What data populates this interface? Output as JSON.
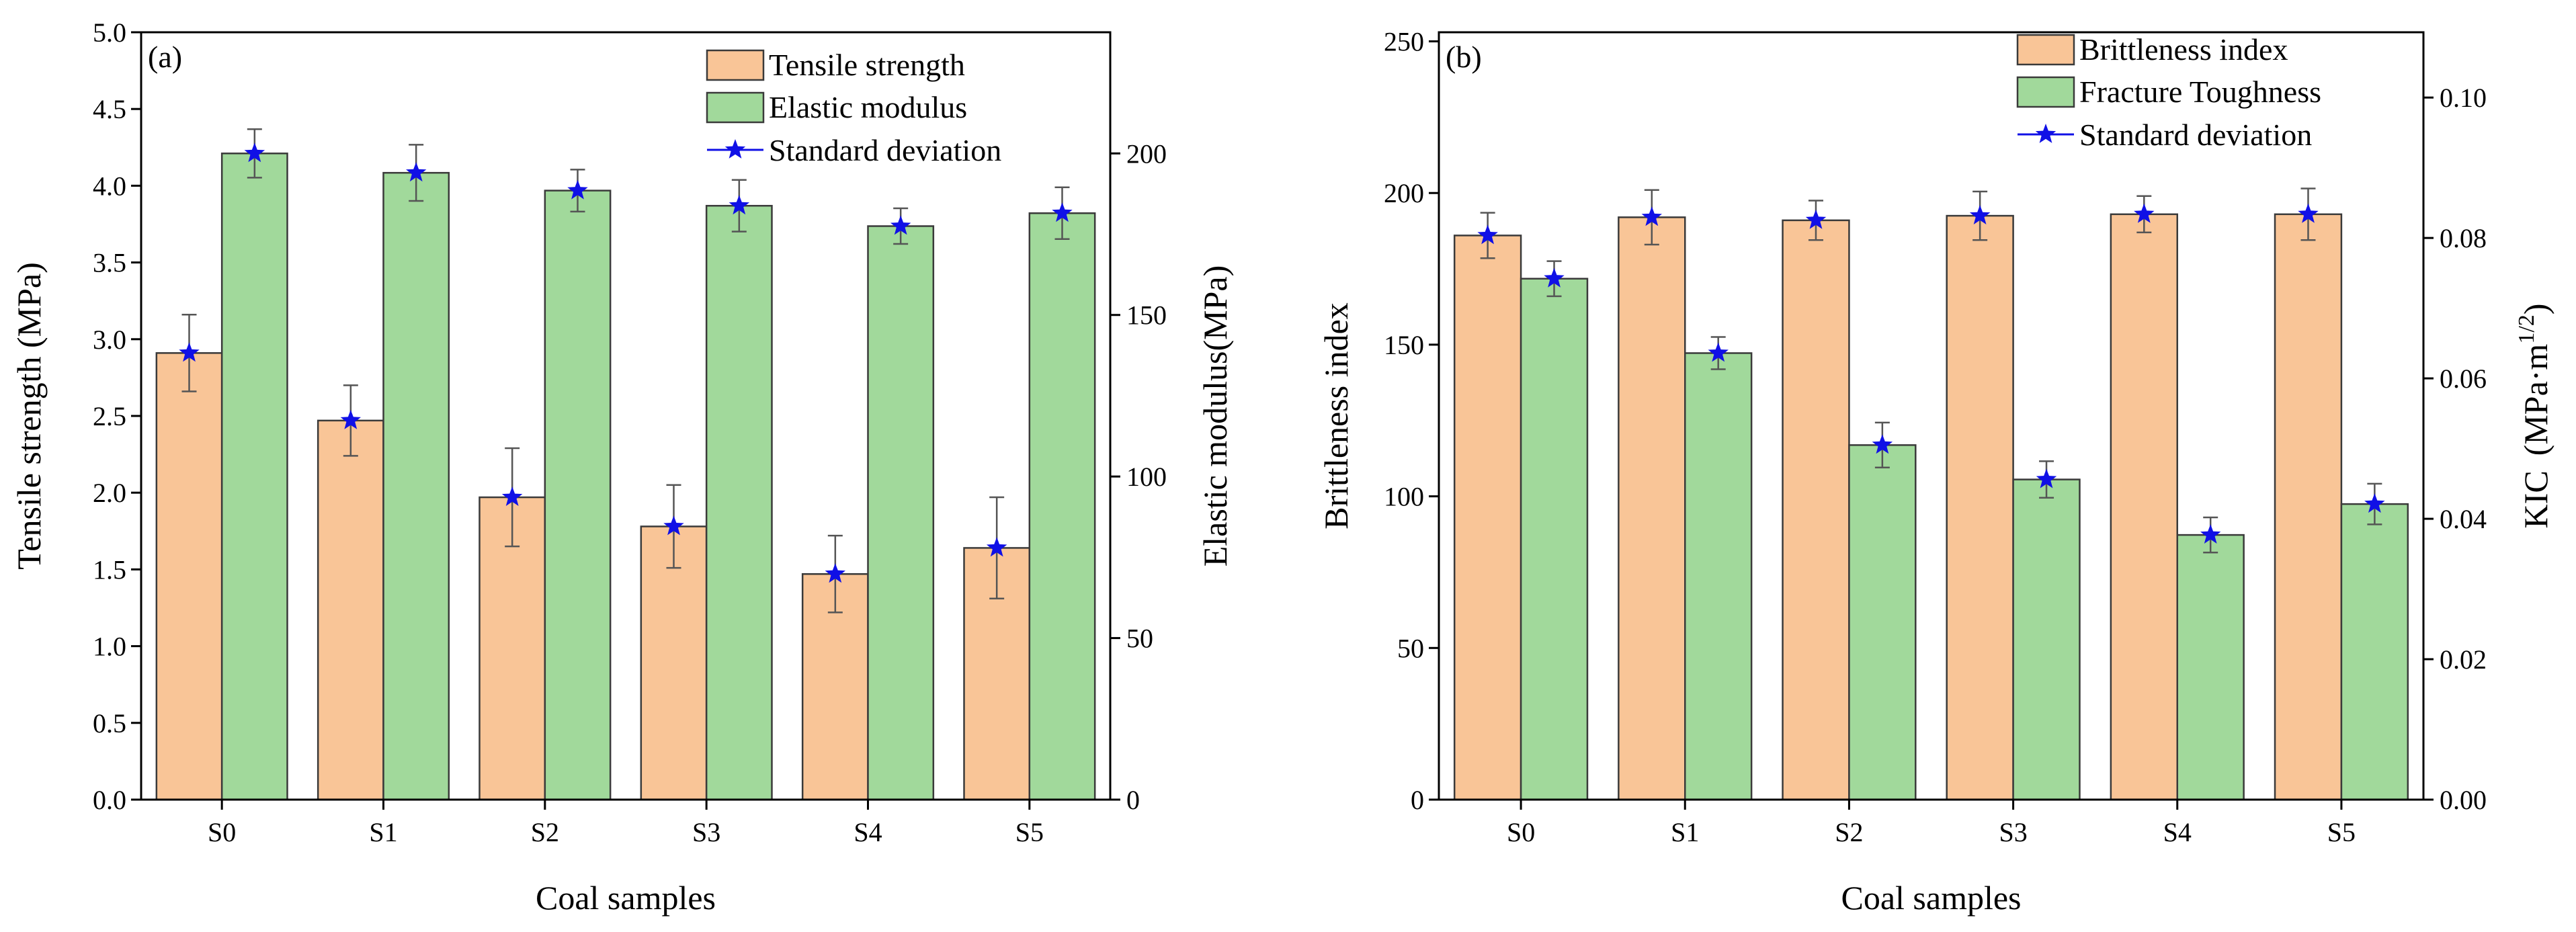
{
  "colors": {
    "series_a": "#F9C597",
    "series_b": "#A1D99B",
    "marker": "#1010E6",
    "error_bar": "#555555"
  },
  "chart_data": [
    {
      "type": "bar",
      "panel_label": "(a)",
      "categories": [
        "S0",
        "S1",
        "S2",
        "S3",
        "S4",
        "S5"
      ],
      "xlabel": "Coal samples",
      "ylabel_left": "Tensile strength (MPa)",
      "ylabel_right": "Elastic modulus(MPa)",
      "ylim_left": [
        0,
        5.0
      ],
      "ylim_right": [
        0,
        237.5
      ],
      "yticks_left": [
        "0.0",
        "0.5",
        "1.0",
        "1.5",
        "2.0",
        "2.5",
        "3.0",
        "3.5",
        "4.0",
        "4.5",
        "5.0"
      ],
      "yticks_left_values": [
        0,
        0.5,
        1.0,
        1.5,
        2.0,
        2.5,
        3.0,
        3.5,
        4.0,
        4.5,
        5.0
      ],
      "yticks_right": [
        "0",
        "50",
        "100",
        "150",
        "200"
      ],
      "yticks_right_values": [
        0,
        50,
        100,
        150,
        200
      ],
      "series": [
        {
          "name": "Tensile strength",
          "axis": "left",
          "values": [
            2.91,
            2.47,
            1.97,
            1.78,
            1.47,
            1.64
          ],
          "errors": [
            0.25,
            0.23,
            0.32,
            0.27,
            0.25,
            0.33
          ]
        },
        {
          "name": "Elastic modulus",
          "axis": "right",
          "values": [
            200,
            194,
            188.5,
            183.8,
            177.5,
            181.5
          ],
          "errors": [
            7.5,
            8.7,
            6.5,
            8.0,
            5.5,
            8.0
          ]
        }
      ],
      "legend": [
        "Tensile strength",
        "Elastic modulus",
        "Standard deviation"
      ],
      "legend_position": "top-right"
    },
    {
      "type": "bar",
      "panel_label": "(b)",
      "categories": [
        "S0",
        "S1",
        "S2",
        "S3",
        "S4",
        "S5"
      ],
      "xlabel": "Coal samples",
      "ylabel_left": "Brittleness index",
      "ylabel_right": "KIC",
      "ylabel_right_unit_prefix": "(MPa·m",
      "ylabel_right_unit_exp": "1/2",
      "ylabel_right_unit_suffix": ")",
      "ylim_left": [
        0,
        253
      ],
      "ylim_right": [
        0,
        0.1093
      ],
      "yticks_left": [
        "0",
        "50",
        "100",
        "150",
        "200",
        "250"
      ],
      "yticks_left_values": [
        0,
        50,
        100,
        150,
        200,
        250
      ],
      "yticks_right": [
        "0.00",
        "0.02",
        "0.04",
        "0.06",
        "0.08",
        "0.10"
      ],
      "yticks_right_values": [
        0,
        0.02,
        0.04,
        0.06,
        0.08,
        0.1
      ],
      "series": [
        {
          "name": "Brittleness index",
          "axis": "left",
          "values": [
            186,
            192,
            191,
            192.5,
            193,
            193
          ],
          "errors": [
            7.5,
            9,
            6.5,
            8,
            6,
            8.5
          ]
        },
        {
          "name": "Fracture Toughness",
          "axis": "right",
          "values": [
            0.0742,
            0.0636,
            0.0505,
            0.0456,
            0.0377,
            0.0421
          ],
          "errors": [
            0.0025,
            0.0023,
            0.0032,
            0.0026,
            0.0025,
            0.0029
          ]
        }
      ],
      "legend": [
        "Brittleness index",
        "Fracture Toughness",
        "Standard deviation"
      ],
      "legend_position": "top-right"
    }
  ]
}
